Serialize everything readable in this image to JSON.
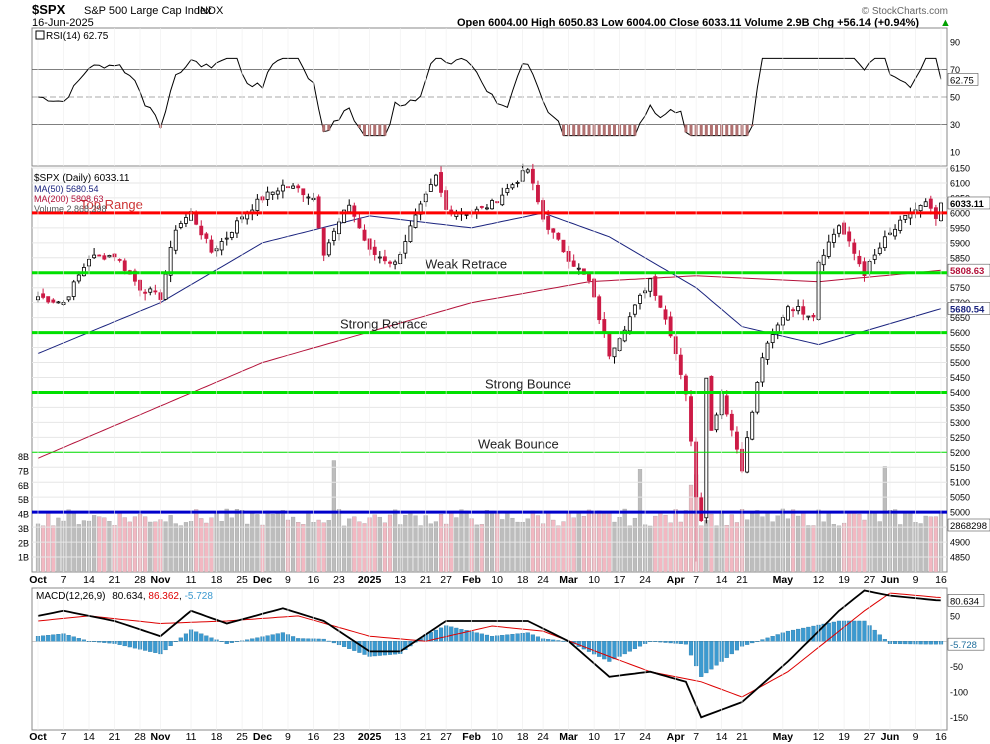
{
  "header": {
    "symbol": "$SPX",
    "name": "S&P 500 Large Cap Index",
    "exchange": "INDX",
    "date": "16-Jun-2025",
    "ohlc": "Open 6004.00  High 6050.83  Low 6004.00  Close 6033.11  Volume 2.9B  Chg +56.14 (+0.94%)",
    "arrow": "▲",
    "watermark": "© StockCharts.com"
  },
  "colors": {
    "up": "#000000",
    "down": "#cc1a45",
    "ma50": "#1a237e",
    "ma200": "#b3123a",
    "rsi": "#000000",
    "macd": "#000000",
    "signal": "#dd0000",
    "hist": "#3c9ad0",
    "vol_up": "#bdbdbd",
    "vol_down": "#f2b8c2",
    "red_line": "#ff0000",
    "green_line": "#00e000",
    "blue_line": "#0000cc"
  },
  "chart_data": [
    {
      "type": "line",
      "panel": "rsi",
      "label": "RSI(14) 62.75",
      "ylim": [
        0,
        100
      ],
      "ticks": [
        10,
        30,
        50,
        70,
        90
      ],
      "tick_labels": [
        "10",
        "30",
        "50",
        "70",
        "90"
      ],
      "reference_lines": [
        30,
        50,
        70
      ],
      "last_value": 62.75,
      "last_label": "62.75"
    },
    {
      "type": "candlestick",
      "panel": "price",
      "labels": {
        "symbol": "$SPX (Daily) 6033.11",
        "ma50": "MA(50) 5680.54",
        "ma200": "MA(200) 5808.63",
        "volume": "Volume 2,868,298"
      },
      "ylim": [
        4800,
        6150
      ],
      "ticks": [
        4850,
        4900,
        4950,
        5000,
        5050,
        5100,
        5150,
        5200,
        5250,
        5300,
        5350,
        5400,
        5450,
        5500,
        5550,
        5600,
        5650,
        5700,
        5750,
        5800,
        5850,
        5900,
        5950,
        6000,
        6050,
        6100,
        6150
      ],
      "tick_labels": [
        "4850",
        "4900",
        "4950",
        "5000",
        "5050",
        "5100",
        "5150",
        "5200",
        "5250",
        "5300",
        "5350",
        "5400",
        "5450",
        "5500",
        "5550",
        "5600",
        "5650",
        "5700",
        "5750",
        "5800",
        "5850",
        "5900",
        "5950",
        "6000",
        "6050",
        "6100",
        "6150"
      ],
      "last_close": 6033.11,
      "last_close_label": "6033.11",
      "ma50_last": 5680.54,
      "ma50_last_label": "5680.54",
      "ma200_last": 5808.63,
      "ma200_last_label": "5808.63",
      "volume_last_label": "2868298",
      "volume_ticks": [
        "1B",
        "2B",
        "3B",
        "4B",
        "5B",
        "6B",
        "7B",
        "8B"
      ],
      "levels": [
        {
          "name": "Top Range",
          "value": 6000,
          "color": "red"
        },
        {
          "name": "Weak Retrace",
          "value": 5800,
          "color": "green"
        },
        {
          "name": "Strong Retrace",
          "value": 5600,
          "color": "green"
        },
        {
          "name": "Strong Bounce",
          "value": 5400,
          "color": "green"
        },
        {
          "name": "Weak Bounce",
          "value": 5200,
          "color": "green"
        },
        {
          "name": "",
          "value": 5000,
          "color": "blue"
        }
      ],
      "anchors": [
        [
          "2024-09-30",
          5720
        ],
        [
          "2024-10-07",
          5700
        ],
        [
          "2024-10-14",
          5850
        ],
        [
          "2024-10-21",
          5860
        ],
        [
          "2024-10-28",
          5750
        ],
        [
          "2024-11-01",
          5720
        ],
        [
          "2024-11-06",
          5950
        ],
        [
          "2024-11-11",
          6000
        ],
        [
          "2024-11-15",
          5870
        ],
        [
          "2024-11-20",
          5920
        ],
        [
          "2024-11-25",
          5990
        ],
        [
          "2024-12-02",
          6050
        ],
        [
          "2024-12-06",
          6090
        ],
        [
          "2024-12-11",
          6080
        ],
        [
          "2024-12-16",
          6050
        ],
        [
          "2024-12-18",
          5870
        ],
        [
          "2024-12-26",
          6030
        ],
        [
          "2025-01-02",
          5870
        ],
        [
          "2025-01-10",
          5830
        ],
        [
          "2025-01-15",
          5950
        ],
        [
          "2025-01-23",
          6120
        ],
        [
          "2025-01-27",
          6010
        ],
        [
          "2025-02-03",
          6000
        ],
        [
          "2025-02-07",
          6030
        ],
        [
          "2025-02-19",
          6145
        ],
        [
          "2025-02-24",
          5980
        ],
        [
          "2025-03-03",
          5850
        ],
        [
          "2025-03-07",
          5770
        ],
        [
          "2025-03-13",
          5530
        ],
        [
          "2025-03-18",
          5620
        ],
        [
          "2025-03-25",
          5780
        ],
        [
          "2025-03-31",
          5600
        ],
        [
          "2025-04-03",
          5400
        ],
        [
          "2025-04-07",
          5060
        ],
        [
          "2025-04-08",
          4980
        ],
        [
          "2025-04-09",
          5460
        ],
        [
          "2025-04-10",
          5270
        ],
        [
          "2025-04-14",
          5400
        ],
        [
          "2025-04-21",
          5150
        ],
        [
          "2025-04-25",
          5520
        ],
        [
          "2025-05-02",
          5690
        ],
        [
          "2025-05-09",
          5660
        ],
        [
          "2025-05-12",
          5840
        ],
        [
          "2025-05-16",
          5960
        ],
        [
          "2025-05-23",
          5800
        ],
        [
          "2025-05-30",
          5910
        ],
        [
          "2025-06-06",
          6000
        ],
        [
          "2025-06-11",
          6030
        ],
        [
          "2025-06-13",
          5980
        ],
        [
          "2025-06-16",
          6033
        ]
      ],
      "ma50_anchors": [
        [
          "2024-09-30",
          5530
        ],
        [
          "2024-11-01",
          5700
        ],
        [
          "2024-12-02",
          5900
        ],
        [
          "2025-01-02",
          5990
        ],
        [
          "2025-02-03",
          5950
        ],
        [
          "2025-02-24",
          6000
        ],
        [
          "2025-03-13",
          5920
        ],
        [
          "2025-04-07",
          5750
        ],
        [
          "2025-04-21",
          5620
        ],
        [
          "2025-05-12",
          5560
        ],
        [
          "2025-06-16",
          5680
        ]
      ],
      "ma200_anchors": [
        [
          "2024-09-30",
          5180
        ],
        [
          "2024-12-02",
          5500
        ],
        [
          "2025-02-03",
          5700
        ],
        [
          "2025-03-07",
          5770
        ],
        [
          "2025-04-07",
          5790
        ],
        [
          "2025-05-12",
          5770
        ],
        [
          "2025-06-16",
          5808
        ]
      ]
    },
    {
      "type": "line",
      "panel": "macd",
      "label": "MACD(12,26,9) 80.634, 86.362, -5.728",
      "label_parts": {
        "name": "MACD(12,26,9)",
        "macd": "80.634",
        "signal": "86.362",
        "hist": "-5.728"
      },
      "ylim": [
        -175,
        105
      ],
      "ticks": [
        -150,
        -100,
        -50,
        0,
        50
      ],
      "tick_labels": [
        "-150",
        "-100",
        "-50",
        "0",
        "50"
      ],
      "macd_last": 80.634,
      "hist_last": -5.728,
      "macd_anchors": [
        [
          "2024-09-30",
          50
        ],
        [
          "2024-10-07",
          60
        ],
        [
          "2024-10-21",
          40
        ],
        [
          "2024-11-01",
          10
        ],
        [
          "2024-11-11",
          60
        ],
        [
          "2024-11-20",
          35
        ],
        [
          "2024-12-06",
          65
        ],
        [
          "2024-12-18",
          40
        ],
        [
          "2025-01-02",
          -20
        ],
        [
          "2025-01-13",
          -20
        ],
        [
          "2025-01-27",
          40
        ],
        [
          "2025-02-19",
          40
        ],
        [
          "2025-03-03",
          0
        ],
        [
          "2025-03-13",
          -70
        ],
        [
          "2025-03-25",
          -60
        ],
        [
          "2025-04-03",
          -80
        ],
        [
          "2025-04-08",
          -150
        ],
        [
          "2025-04-21",
          -120
        ],
        [
          "2025-05-02",
          -40
        ],
        [
          "2025-05-16",
          60
        ],
        [
          "2025-05-23",
          100
        ],
        [
          "2025-06-02",
          90
        ],
        [
          "2025-06-16",
          80
        ]
      ],
      "signal_anchors": [
        [
          "2024-09-30",
          40
        ],
        [
          "2024-10-14",
          50
        ],
        [
          "2024-11-01",
          35
        ],
        [
          "2024-11-20",
          40
        ],
        [
          "2024-12-11",
          50
        ],
        [
          "2025-01-02",
          10
        ],
        [
          "2025-01-20",
          0
        ],
        [
          "2025-02-07",
          30
        ],
        [
          "2025-02-24",
          20
        ],
        [
          "2025-03-13",
          -30
        ],
        [
          "2025-03-25",
          -60
        ],
        [
          "2025-04-08",
          -80
        ],
        [
          "2025-04-21",
          -110
        ],
        [
          "2025-05-02",
          -60
        ],
        [
          "2025-05-23",
          60
        ],
        [
          "2025-06-02",
          95
        ],
        [
          "2025-06-16",
          86
        ]
      ]
    }
  ],
  "x_axis": {
    "labels": [
      {
        "text": "Oct",
        "date": "2024-09-30",
        "bold": true
      },
      {
        "text": "7",
        "date": "2024-10-07"
      },
      {
        "text": "14",
        "date": "2024-10-14"
      },
      {
        "text": "21",
        "date": "2024-10-21"
      },
      {
        "text": "28",
        "date": "2024-10-28"
      },
      {
        "text": "Nov",
        "date": "2024-11-01",
        "bold": true
      },
      {
        "text": "11",
        "date": "2024-11-11"
      },
      {
        "text": "18",
        "date": "2024-11-18"
      },
      {
        "text": "25",
        "date": "2024-11-25"
      },
      {
        "text": "Dec",
        "date": "2024-12-02",
        "bold": true
      },
      {
        "text": "9",
        "date": "2024-12-09"
      },
      {
        "text": "16",
        "date": "2024-12-16"
      },
      {
        "text": "23",
        "date": "2024-12-23"
      },
      {
        "text": "2025",
        "date": "2025-01-02",
        "bold": true
      },
      {
        "text": "13",
        "date": "2025-01-13"
      },
      {
        "text": "21",
        "date": "2025-01-21"
      },
      {
        "text": "27",
        "date": "2025-01-27"
      },
      {
        "text": "Feb",
        "date": "2025-02-03",
        "bold": true
      },
      {
        "text": "10",
        "date": "2025-02-10"
      },
      {
        "text": "18",
        "date": "2025-02-18"
      },
      {
        "text": "24",
        "date": "2025-02-24"
      },
      {
        "text": "Mar",
        "date": "2025-03-03",
        "bold": true
      },
      {
        "text": "10",
        "date": "2025-03-10"
      },
      {
        "text": "17",
        "date": "2025-03-17"
      },
      {
        "text": "24",
        "date": "2025-03-24"
      },
      {
        "text": "Apr",
        "date": "2025-04-01",
        "bold": true
      },
      {
        "text": "7",
        "date": "2025-04-07"
      },
      {
        "text": "14",
        "date": "2025-04-14"
      },
      {
        "text": "21",
        "date": "2025-04-21"
      },
      {
        "text": "May",
        "date": "2025-05-01",
        "bold": true
      },
      {
        "text": "12",
        "date": "2025-05-12"
      },
      {
        "text": "19",
        "date": "2025-05-19"
      },
      {
        "text": "27",
        "date": "2025-05-27"
      },
      {
        "text": "Jun",
        "date": "2025-06-02",
        "bold": true
      },
      {
        "text": "9",
        "date": "2025-06-09"
      },
      {
        "text": "16",
        "date": "2025-06-16"
      }
    ]
  }
}
